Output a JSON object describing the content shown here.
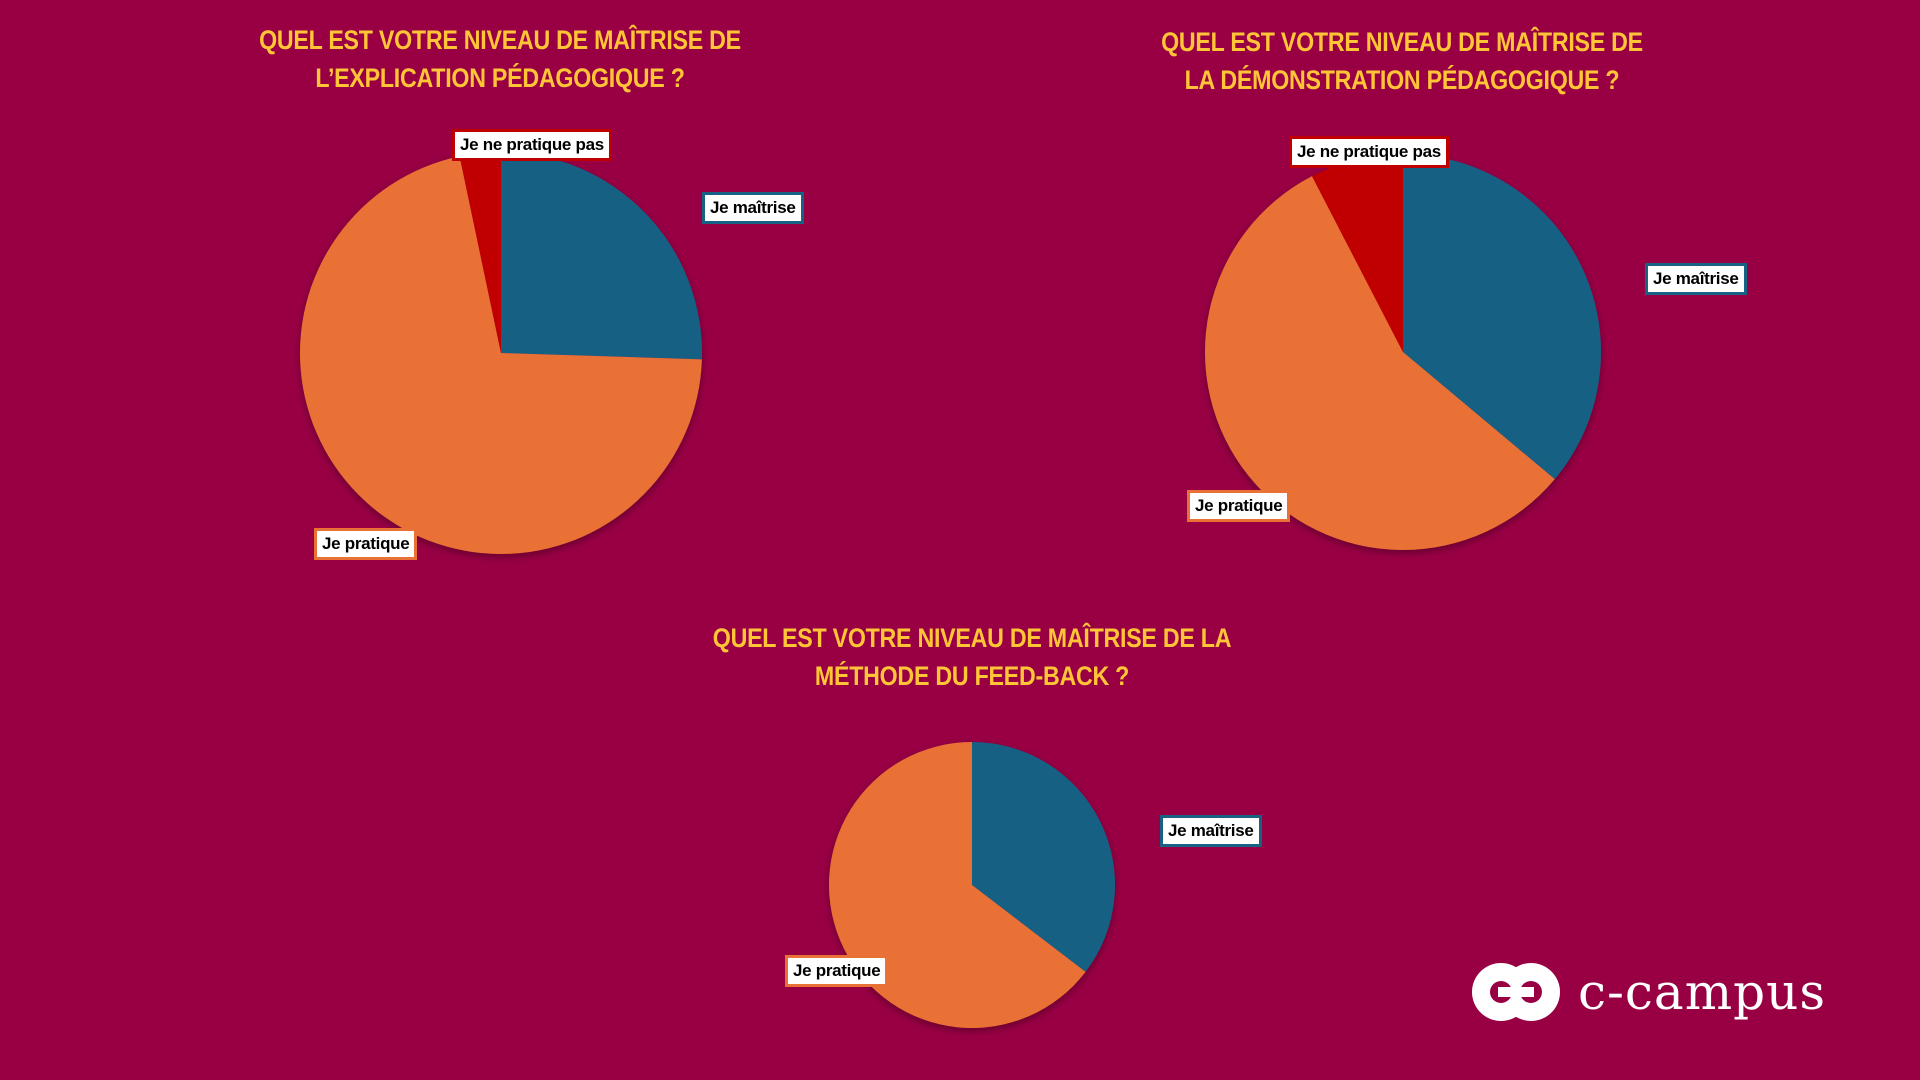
{
  "colors": {
    "background": "#990044",
    "title": "#ffc537",
    "je_maitrise": "#176184",
    "je_pratique": "#ea7136",
    "je_ne_pratique_pas": "#c00000"
  },
  "chart_data": [
    {
      "type": "pie",
      "title_lines": [
        "QUEL EST VOTRE NIVEAU DE MAÎTRISE DE",
        "L’EXPLICATION PÉDAGOGIQUE ?"
      ],
      "categories": [
        "Je maîtrise",
        "Je pratique",
        "Je ne pratique pas"
      ],
      "values": [
        25.5,
        71.2,
        3.3
      ]
    },
    {
      "type": "pie",
      "title_lines": [
        "QUEL EST VOTRE NIVEAU DE MAÎTRISE DE",
        "LA DÉMONSTRATION PÉDAGOGIQUE ?"
      ],
      "categories": [
        "Je maîtrise",
        "Je pratique",
        "Je ne pratique pas"
      ],
      "values": [
        36.1,
        56.3,
        7.6
      ]
    },
    {
      "type": "pie",
      "title_lines": [
        "QUEL EST VOTRE NIVEAU DE MAÎTRISE DE LA",
        "MÉTHODE DU FEED-BACK ?"
      ],
      "categories": [
        "Je maîtrise",
        "Je pratique"
      ],
      "values": [
        35.4,
        64.6
      ]
    }
  ],
  "logo": {
    "text": "c-campus",
    "icon": "c-campus-logo-icon"
  }
}
